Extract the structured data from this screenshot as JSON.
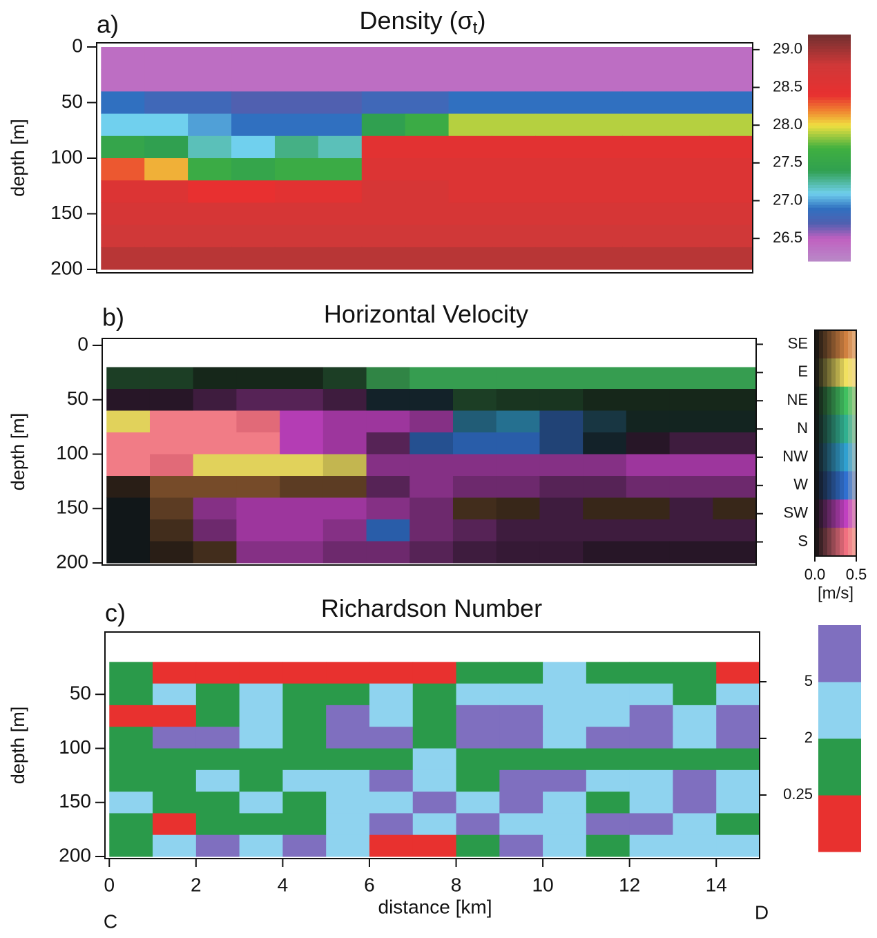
{
  "chart_data": [
    {
      "type": "heatmap",
      "label": "a)",
      "title": [
        "Density (σ",
        "t",
        ")"
      ],
      "ylabel": "depth [m]",
      "ylim": [
        0,
        200
      ],
      "yticks": [
        0,
        50,
        100,
        150,
        200
      ],
      "xlim": [
        -0.1,
        15
      ],
      "x": [
        0.5,
        1.5,
        2.5,
        3.5,
        4.5,
        5.5,
        6.5,
        7.5,
        8.5,
        9.5,
        10.5,
        11.5,
        12.5,
        13.5,
        14.5
      ],
      "y": [
        10,
        30,
        50,
        70,
        90,
        110,
        130,
        150,
        170,
        190
      ],
      "values": [
        [
          26.4,
          26.4,
          26.4,
          26.4,
          26.4,
          26.4,
          26.4,
          26.4,
          26.4,
          26.4,
          26.4,
          26.4,
          26.4,
          26.4,
          26.4
        ],
        [
          26.4,
          26.4,
          26.4,
          26.4,
          26.4,
          26.4,
          26.4,
          26.4,
          26.4,
          26.4,
          26.4,
          26.4,
          26.4,
          26.4,
          26.4
        ],
        [
          26.9,
          26.8,
          26.8,
          26.7,
          26.7,
          26.7,
          26.8,
          26.8,
          26.9,
          26.9,
          26.9,
          26.9,
          26.9,
          26.9,
          26.9
        ],
        [
          27.1,
          27.1,
          27.0,
          26.9,
          26.9,
          26.9,
          27.4,
          27.6,
          27.9,
          27.9,
          27.9,
          27.9,
          27.9,
          27.9,
          27.9
        ],
        [
          27.5,
          27.4,
          27.2,
          27.1,
          27.3,
          27.2,
          28.5,
          28.5,
          28.5,
          28.5,
          28.5,
          28.5,
          28.5,
          28.5,
          28.5
        ],
        [
          28.3,
          28.1,
          27.6,
          27.5,
          27.6,
          27.6,
          28.6,
          28.6,
          28.6,
          28.6,
          28.6,
          28.6,
          28.6,
          28.6,
          28.6
        ],
        [
          28.6,
          28.6,
          28.4,
          28.4,
          28.5,
          28.5,
          28.7,
          28.7,
          28.6,
          28.6,
          28.6,
          28.6,
          28.6,
          28.6,
          28.6
        ],
        [
          28.7,
          28.7,
          28.7,
          28.7,
          28.7,
          28.7,
          28.7,
          28.7,
          28.7,
          28.7,
          28.7,
          28.7,
          28.7,
          28.7,
          28.7
        ],
        [
          28.8,
          28.8,
          28.8,
          28.8,
          28.8,
          28.8,
          28.8,
          28.8,
          28.8,
          28.8,
          28.8,
          28.8,
          28.8,
          28.8,
          28.8
        ],
        [
          28.9,
          28.9,
          28.9,
          28.9,
          28.9,
          28.9,
          28.9,
          28.9,
          28.9,
          28.9,
          28.9,
          28.9,
          28.9,
          28.9,
          28.9
        ]
      ],
      "colorbar": {
        "lim": [
          26.2,
          29.2
        ],
        "ticks": [
          {
            "value": 29,
            "label": "29.0"
          },
          28.5,
          {
            "value": 28,
            "label": "28.0"
          },
          27.5,
          {
            "value": 27,
            "label": "27.0"
          },
          26.5
        ]
      }
    },
    {
      "type": "heatmap",
      "label": "b)",
      "title": [
        "Horizontal Velocity"
      ],
      "ylabel": "depth [m]",
      "ylim": [
        0,
        200
      ],
      "yticks": [
        0,
        50,
        100,
        150,
        200
      ],
      "xlim": [
        -0.1,
        15
      ],
      "x": [
        0.5,
        1.5,
        2.5,
        3.5,
        4.5,
        5.5,
        6.5,
        7.5,
        8.5,
        9.5,
        10.5,
        11.5,
        12.5,
        13.5,
        14.5
      ],
      "y": [
        30,
        50,
        70,
        90,
        110,
        130,
        150,
        170,
        190
      ],
      "values": [
        [
          "NE",
          "NE",
          "NE",
          "NE",
          "NE",
          "NE",
          "NE",
          "NE",
          "NE",
          "NE",
          "NE",
          "NE",
          "NE",
          "NE",
          "NE"
        ],
        [
          "SW",
          "SW",
          "SW",
          "SW",
          "SW",
          "SW",
          "NW",
          "NW",
          "NE",
          "NE",
          "NE",
          "NE",
          "NE",
          "NE",
          "NE"
        ],
        [
          "E",
          "S",
          "S",
          "S",
          "SW",
          "SW",
          "SW",
          "SW",
          "NW",
          "NW",
          "W",
          "NW",
          "N",
          "N",
          "N"
        ],
        [
          "S",
          "S",
          "S",
          "S",
          "SW",
          "SW",
          "SW",
          "W",
          "W",
          "W",
          "W",
          "NW",
          "SW",
          "SW",
          "SW"
        ],
        [
          "S",
          "S",
          "E",
          "E",
          "E",
          "E",
          "SW",
          "SW",
          "SW",
          "SW",
          "SW",
          "SW",
          "SW",
          "SW",
          "SW"
        ],
        [
          "SE",
          "SE",
          "SE",
          "SE",
          "SE",
          "SE",
          "SW",
          "SW",
          "SW",
          "SW",
          "SW",
          "SW",
          "SW",
          "SW",
          "SW"
        ],
        [
          "NW",
          "SE",
          "SW",
          "SW",
          "SW",
          "SW",
          "SW",
          "SW",
          "SE",
          "SE",
          "SW",
          "SE",
          "SE",
          "SW",
          "SE"
        ],
        [
          "NW",
          "SE",
          "SW",
          "SW",
          "SW",
          "SW",
          "W",
          "SW",
          "SW",
          "SW",
          "SW",
          "SW",
          "SW",
          "SW",
          "SW"
        ],
        [
          "NW",
          "SE",
          "SE",
          "SW",
          "SW",
          "SW",
          "SW",
          "SW",
          "SW",
          "SW",
          "SW",
          "SW",
          "SW",
          "SW",
          "SW"
        ]
      ],
      "speeds": [
        [
          0.1,
          0.1,
          0.05,
          0.05,
          0.05,
          0.1,
          0.25,
          0.3,
          0.3,
          0.3,
          0.3,
          0.3,
          0.3,
          0.3,
          0.3
        ],
        [
          0.05,
          0.05,
          0.1,
          0.15,
          0.15,
          0.1,
          0.05,
          0.05,
          0.1,
          0.08,
          0.08,
          0.05,
          0.05,
          0.05,
          0.05
        ],
        [
          0.35,
          0.4,
          0.4,
          0.35,
          0.35,
          0.3,
          0.3,
          0.25,
          0.2,
          0.25,
          0.2,
          0.1,
          0.05,
          0.05,
          0.05
        ],
        [
          0.4,
          0.4,
          0.4,
          0.4,
          0.35,
          0.3,
          0.15,
          0.25,
          0.3,
          0.3,
          0.2,
          0.05,
          0.05,
          0.1,
          0.1
        ],
        [
          0.4,
          0.35,
          0.35,
          0.35,
          0.35,
          0.3,
          0.25,
          0.25,
          0.25,
          0.25,
          0.25,
          0.25,
          0.3,
          0.3,
          0.3
        ],
        [
          0.05,
          0.2,
          0.2,
          0.2,
          0.15,
          0.15,
          0.15,
          0.25,
          0.2,
          0.2,
          0.15,
          0.15,
          0.2,
          0.2,
          0.2
        ],
        [
          0.02,
          0.15,
          0.25,
          0.3,
          0.3,
          0.3,
          0.25,
          0.2,
          0.1,
          0.08,
          0.1,
          0.08,
          0.08,
          0.1,
          0.08
        ],
        [
          0.02,
          0.1,
          0.2,
          0.3,
          0.3,
          0.25,
          0.3,
          0.2,
          0.15,
          0.1,
          0.1,
          0.1,
          0.1,
          0.1,
          0.1
        ],
        [
          0.02,
          0.05,
          0.1,
          0.25,
          0.25,
          0.2,
          0.2,
          0.15,
          0.1,
          0.08,
          0.08,
          0.05,
          0.05,
          0.05,
          0.05
        ]
      ],
      "colorbar": {
        "categories": [
          "SE",
          "E",
          "NE",
          "N",
          "NW",
          "W",
          "SW",
          "S"
        ],
        "colors": [
          "#d08040",
          "#f0e060",
          "#40c060",
          "#30b090",
          "#30a0d0",
          "#3070d0",
          "#c040c0",
          "#f07080"
        ],
        "xlim": [
          0,
          0.5
        ],
        "xticks": [
          {
            "value": 0,
            "label": "0.0"
          },
          0.5
        ],
        "xlabel": "[m/s]"
      }
    },
    {
      "type": "heatmap",
      "label": "c)",
      "title": [
        "Richardson Number"
      ],
      "ylabel": "depth [m]",
      "ylim": [
        0,
        200
      ],
      "yticks": [
        50,
        100,
        150,
        200
      ],
      "xlim": [
        -0.1,
        15
      ],
      "xticks": [
        0,
        2,
        4,
        6,
        8,
        10,
        12,
        14
      ],
      "xlabel": "distance [km]",
      "x_end_labels": [
        "C",
        "D"
      ],
      "x": [
        0.5,
        1.5,
        2.5,
        3.5,
        4.5,
        5.5,
        6.5,
        7.5,
        8.5,
        9.5,
        10.5,
        11.5,
        12.5,
        13.5,
        14.5
      ],
      "y": [
        30,
        50,
        70,
        90,
        110,
        130,
        150,
        170,
        190
      ],
      "values": [
        [
          1,
          0.1,
          0.1,
          0.1,
          0.1,
          0.1,
          0.1,
          0.1,
          1,
          1,
          3,
          1,
          1,
          1,
          0.1
        ],
        [
          1,
          3,
          1,
          3,
          1,
          1,
          3,
          1,
          3,
          3,
          3,
          3,
          3,
          1,
          3
        ],
        [
          0.1,
          0.1,
          1,
          3,
          1,
          8,
          3,
          1,
          8,
          8,
          3,
          3,
          8,
          3,
          8
        ],
        [
          1,
          8,
          8,
          3,
          1,
          8,
          8,
          1,
          8,
          8,
          3,
          8,
          8,
          3,
          8
        ],
        [
          1,
          1,
          1,
          1,
          1,
          1,
          1,
          3,
          1,
          1,
          1,
          1,
          1,
          1,
          1
        ],
        [
          1,
          1,
          3,
          1,
          3,
          3,
          8,
          3,
          1,
          8,
          8,
          3,
          3,
          8,
          3
        ],
        [
          3,
          1,
          1,
          3,
          1,
          3,
          3,
          8,
          3,
          8,
          3,
          1,
          3,
          8,
          3
        ],
        [
          1,
          0.1,
          1,
          1,
          1,
          3,
          8,
          3,
          8,
          3,
          3,
          8,
          8,
          3,
          1
        ],
        [
          1,
          3,
          8,
          3,
          8,
          3,
          0.1,
          0.1,
          1,
          8,
          3,
          1,
          3,
          3,
          3
        ]
      ],
      "colorbar": {
        "ticks": [
          0.25,
          2,
          5
        ],
        "colors": [
          "#e8312f",
          "#2a9a4a",
          "#8fd3ef",
          "#7f6fbf"
        ]
      }
    }
  ]
}
